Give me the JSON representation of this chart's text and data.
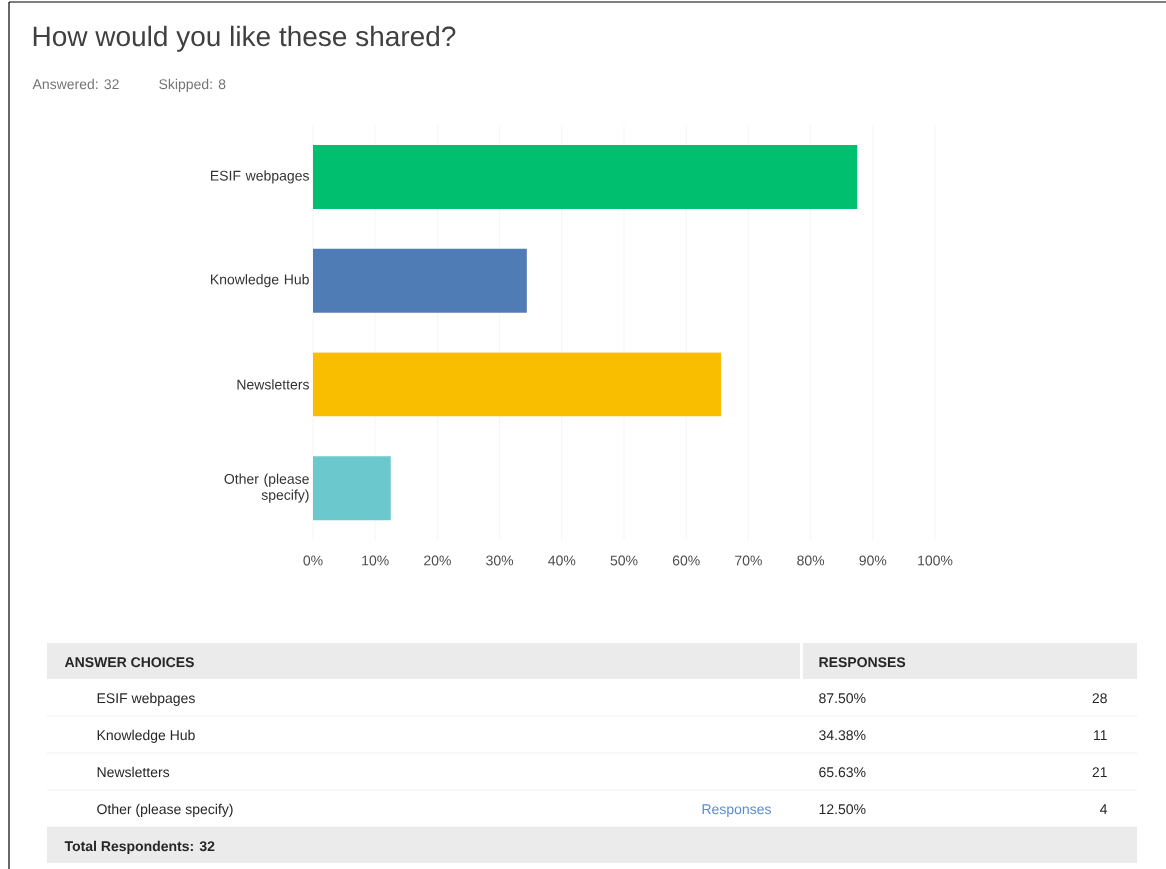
{
  "chart_data": {
    "type": "bar",
    "orientation": "horizontal",
    "title": "How would you like these shared?",
    "categories": [
      "ESIF webpages",
      "Knowledge Hub",
      "Newsletters",
      "Other (please specify)"
    ],
    "values": [
      87.5,
      34.38,
      65.63,
      12.5
    ],
    "colors": [
      "#00bf6f",
      "#507cb6",
      "#f9be00",
      "#6bc8cd"
    ],
    "xlim": [
      0,
      100
    ],
    "xticks": [
      {
        "value": 0,
        "label": "0%"
      },
      {
        "value": 10,
        "label": "10%"
      },
      {
        "value": 20,
        "label": "20%"
      },
      {
        "value": 30,
        "label": "30%"
      },
      {
        "value": 40,
        "label": "40%"
      },
      {
        "value": 50,
        "label": "50%"
      },
      {
        "value": 60,
        "label": "60%"
      },
      {
        "value": 70,
        "label": "70%"
      },
      {
        "value": 80,
        "label": "80%"
      },
      {
        "value": 90,
        "label": "90%"
      },
      {
        "value": 100,
        "label": "100%"
      }
    ],
    "grid": "x",
    "annotations": [
      "Answered: 32",
      "Skipped: 8",
      "ANSWER CHOICES",
      "RESPONSES",
      "Responses",
      "Total Respondents: 32",
      "28",
      "11",
      "21",
      "4",
      "87.50%",
      "34.38%",
      "65.63%",
      "12.50%"
    ]
  }
}
